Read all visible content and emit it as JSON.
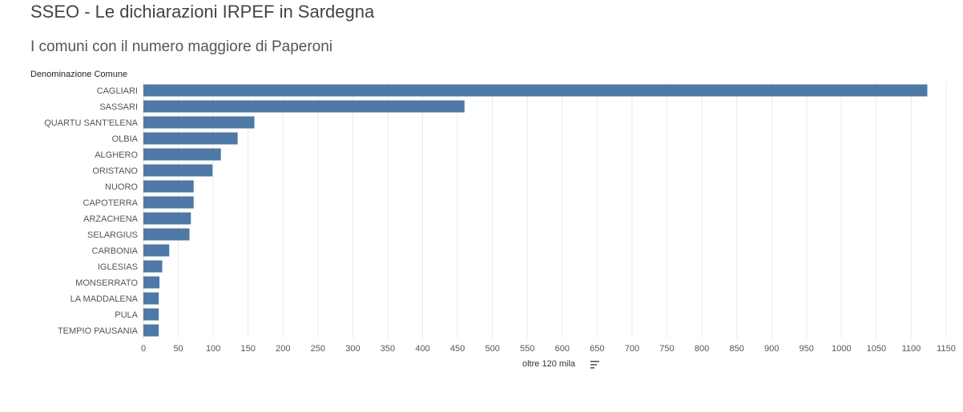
{
  "header": {
    "title": "SSEO - Le dichiarazioni IRPEF in Sardegna",
    "subtitle": "I comuni con il numero maggiore di Paperoni"
  },
  "chart_data": {
    "type": "bar",
    "orientation": "horizontal",
    "ylabel": "Denominazione Comune",
    "xlabel": "oltre 120 mila",
    "categories": [
      "CAGLIARI",
      "SASSARI",
      "QUARTU SANT'ELENA",
      "OLBIA",
      "ALGHERO",
      "ORISTANO",
      "NUORO",
      "CAPOTERRA",
      "ARZACHENA",
      "SELARGIUS",
      "CARBONIA",
      "IGLESIAS",
      "MONSERRATO",
      "LA MADDALENA",
      "PULA",
      "TEMPIO PAUSANIA"
    ],
    "values": [
      1123,
      460,
      159,
      135,
      111,
      99,
      72,
      72,
      68,
      66,
      37,
      27,
      23,
      22,
      22,
      22
    ],
    "xlim": [
      0,
      1150
    ],
    "xticks": [
      0,
      50,
      100,
      150,
      200,
      250,
      300,
      350,
      400,
      450,
      500,
      550,
      600,
      650,
      700,
      750,
      800,
      850,
      900,
      950,
      1000,
      1050,
      1100,
      1150
    ],
    "grid": "vertical",
    "bar_color": "#4e79a7"
  },
  "icons": {
    "sort": "sort-descending-icon"
  }
}
